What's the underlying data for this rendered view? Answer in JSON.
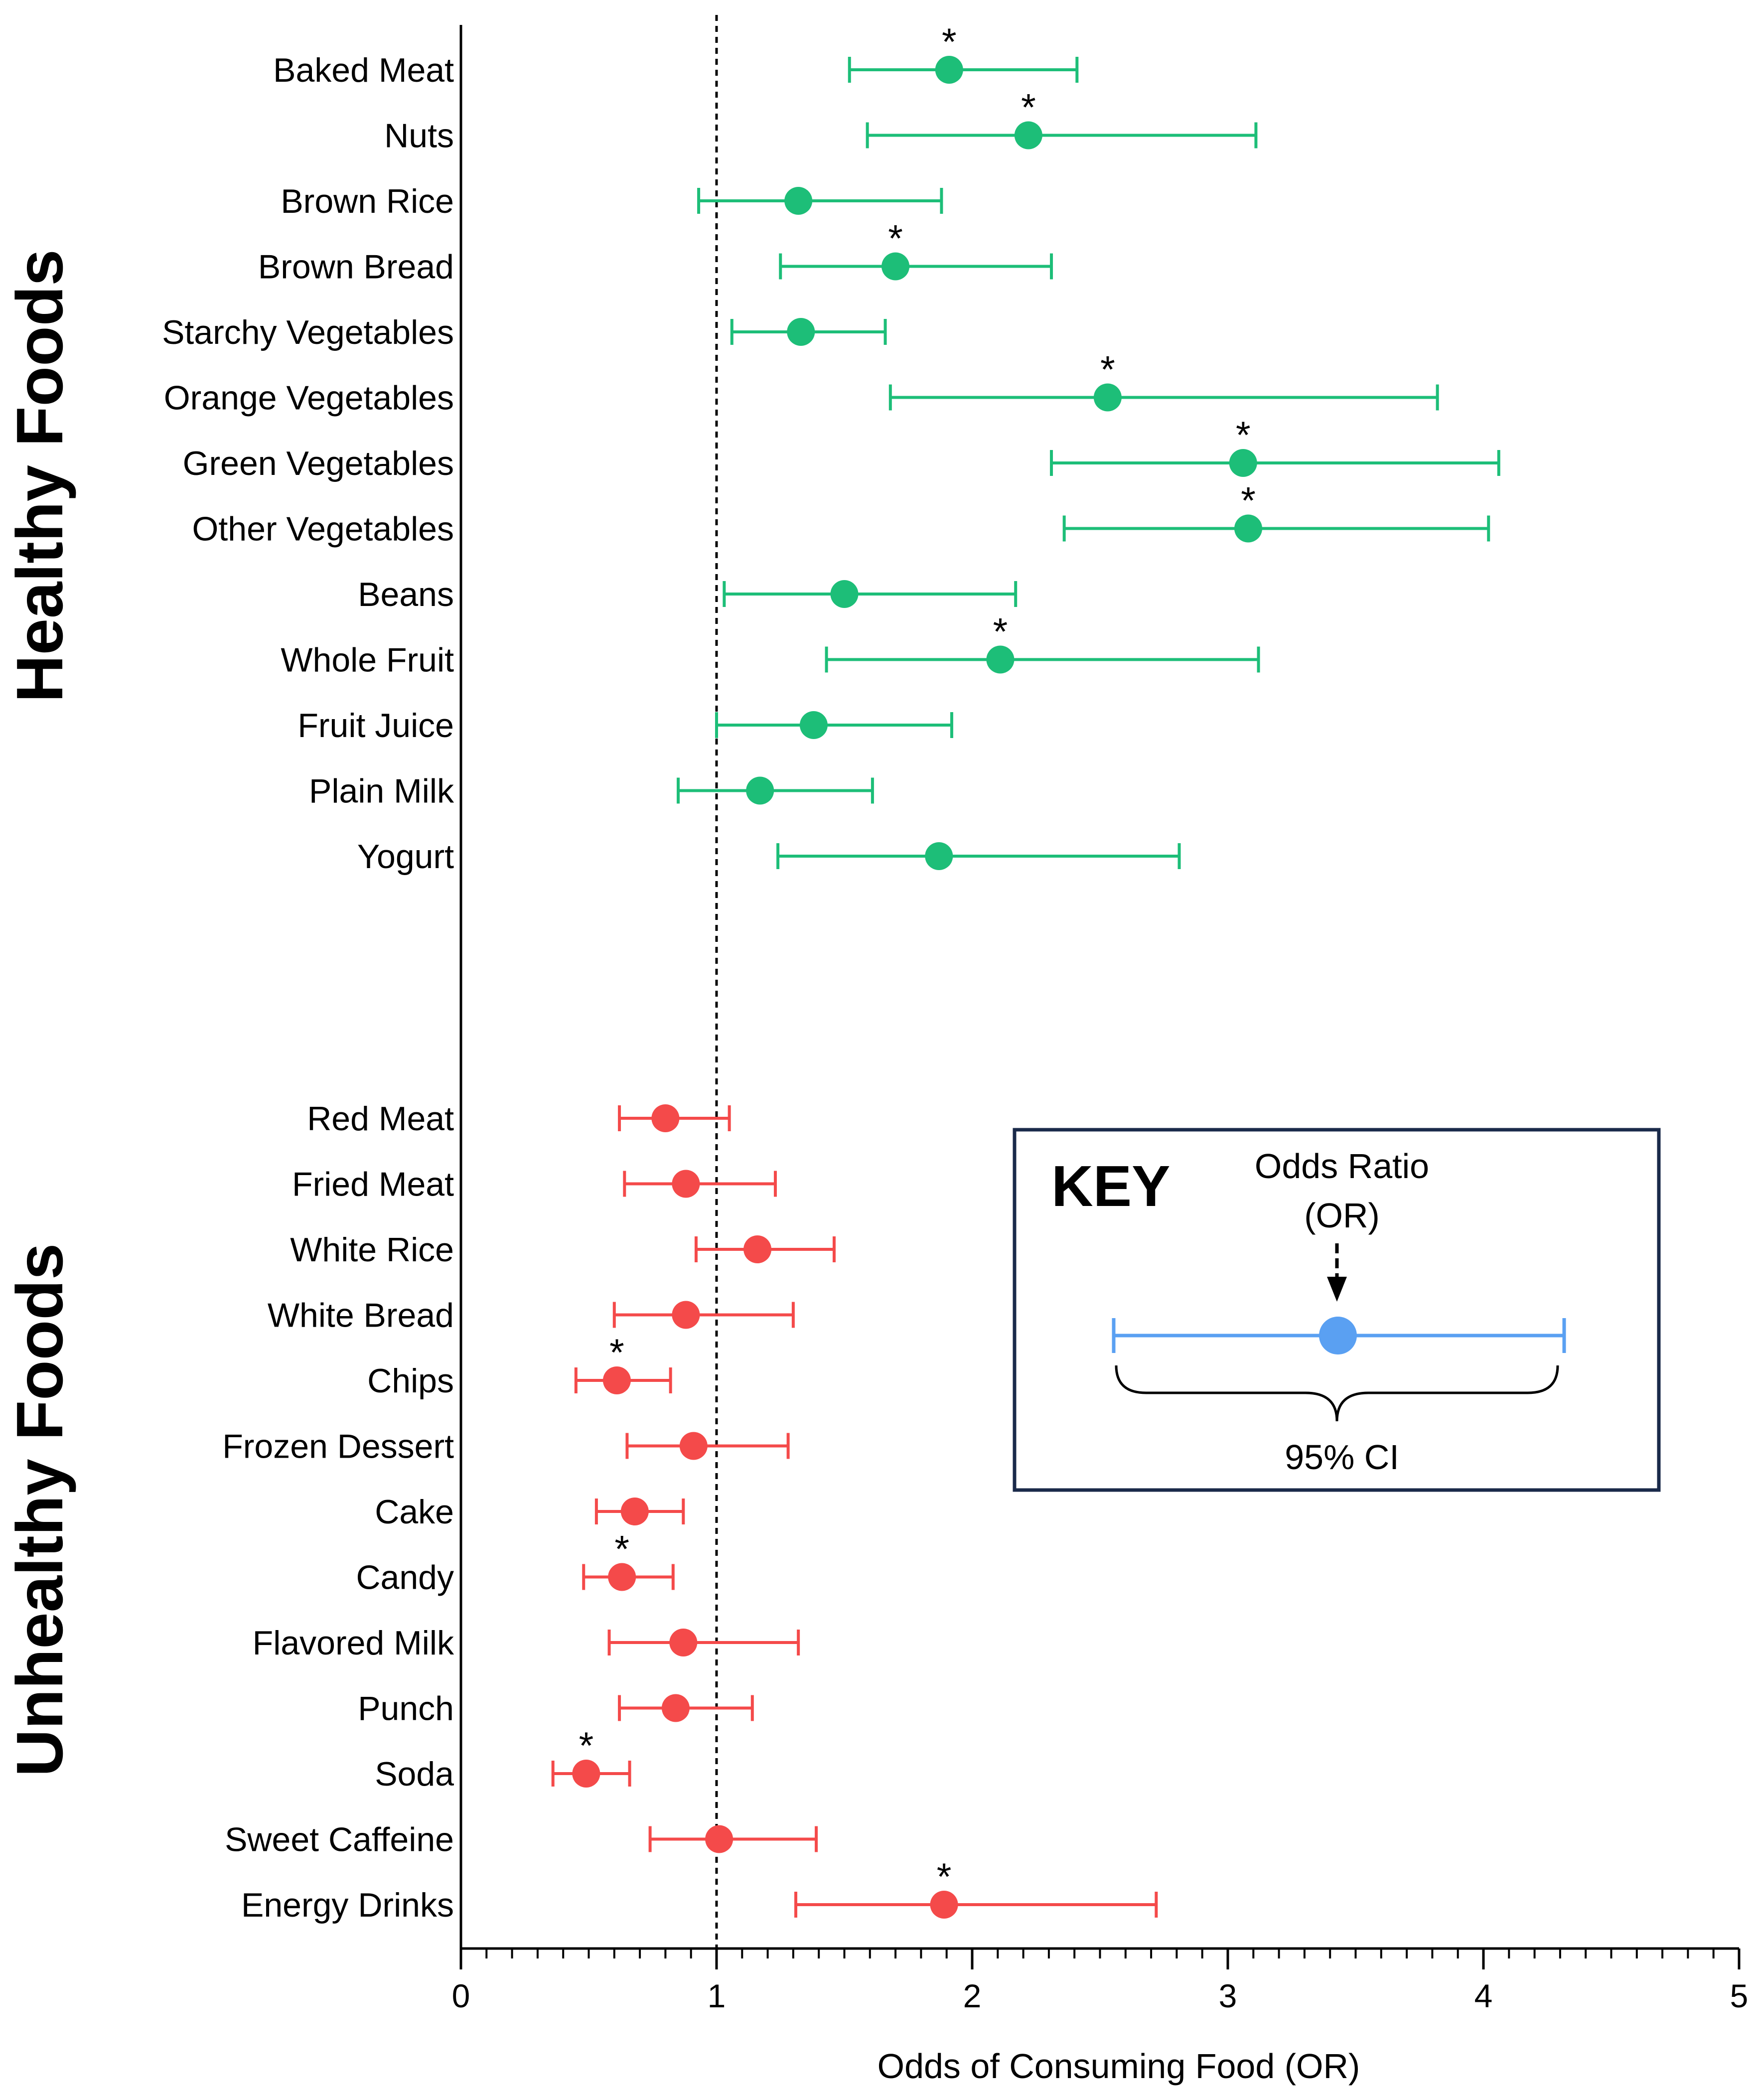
{
  "chart_data": {
    "type": "forest",
    "xlabel": "Odds of Consuming Food (OR)",
    "xlim": [
      0,
      5
    ],
    "x_ticks": [
      "0",
      "1",
      "2",
      "3",
      "4",
      "5"
    ],
    "reference_line": 1,
    "groups": [
      {
        "name": "Healthy Foods",
        "color": "#1dbe78",
        "items": [
          {
            "label": "Baked Meat",
            "or": 1.91,
            "lo": 1.52,
            "hi": 2.41,
            "sig": "*"
          },
          {
            "label": "Nuts",
            "or": 2.22,
            "lo": 1.59,
            "hi": 3.11,
            "sig": "*"
          },
          {
            "label": "Brown Rice",
            "or": 1.32,
            "lo": 0.93,
            "hi": 1.88,
            "sig": ""
          },
          {
            "label": "Brown Bread",
            "or": 1.7,
            "lo": 1.25,
            "hi": 2.31,
            "sig": "*"
          },
          {
            "label": "Starchy Vegetables",
            "or": 1.33,
            "lo": 1.06,
            "hi": 1.66,
            "sig": ""
          },
          {
            "label": "Orange Vegetables",
            "or": 2.53,
            "lo": 1.68,
            "hi": 3.82,
            "sig": "*"
          },
          {
            "label": "Green Vegetables",
            "or": 3.06,
            "lo": 2.31,
            "hi": 4.06,
            "sig": "*"
          },
          {
            "label": "Other Vegetables",
            "or": 3.08,
            "lo": 2.36,
            "hi": 4.02,
            "sig": "*"
          },
          {
            "label": "Beans",
            "or": 1.5,
            "lo": 1.03,
            "hi": 2.17,
            "sig": ""
          },
          {
            "label": "Whole Fruit",
            "or": 2.11,
            "lo": 1.43,
            "hi": 3.12,
            "sig": "*"
          },
          {
            "label": "Fruit Juice",
            "or": 1.38,
            "lo": 1.0,
            "hi": 1.92,
            "sig": ""
          },
          {
            "label": "Plain Milk",
            "or": 1.17,
            "lo": 0.85,
            "hi": 1.61,
            "sig": ""
          },
          {
            "label": "Yogurt",
            "or": 1.87,
            "lo": 1.24,
            "hi": 2.81,
            "sig": ""
          }
        ]
      },
      {
        "name": "Unhealthy Foods",
        "color": "#f44a4a",
        "items": [
          {
            "label": "Red Meat",
            "or": 0.8,
            "lo": 0.62,
            "hi": 1.05,
            "sig": ""
          },
          {
            "label": "Fried Meat",
            "or": 0.88,
            "lo": 0.64,
            "hi": 1.23,
            "sig": ""
          },
          {
            "label": "White Rice",
            "or": 1.16,
            "lo": 0.92,
            "hi": 1.46,
            "sig": ""
          },
          {
            "label": "White Bread",
            "or": 0.88,
            "lo": 0.6,
            "hi": 1.3,
            "sig": ""
          },
          {
            "label": "Chips",
            "or": 0.61,
            "lo": 0.45,
            "hi": 0.82,
            "sig": "*"
          },
          {
            "label": "Frozen Dessert",
            "or": 0.91,
            "lo": 0.65,
            "hi": 1.28,
            "sig": ""
          },
          {
            "label": "Cake",
            "or": 0.68,
            "lo": 0.53,
            "hi": 0.87,
            "sig": ""
          },
          {
            "label": "Candy",
            "or": 0.63,
            "lo": 0.48,
            "hi": 0.83,
            "sig": "*"
          },
          {
            "label": "Flavored Milk",
            "or": 0.87,
            "lo": 0.58,
            "hi": 1.32,
            "sig": ""
          },
          {
            "label": "Punch",
            "or": 0.84,
            "lo": 0.62,
            "hi": 1.14,
            "sig": ""
          },
          {
            "label": "Soda",
            "or": 0.49,
            "lo": 0.36,
            "hi": 0.66,
            "sig": "*"
          },
          {
            "label": "Sweet Caffeine",
            "or": 1.01,
            "lo": 0.74,
            "hi": 1.39,
            "sig": ""
          },
          {
            "label": "Energy Drinks",
            "or": 1.89,
            "lo": 1.31,
            "hi": 2.72,
            "sig": "*"
          }
        ]
      }
    ],
    "key": {
      "title": "KEY",
      "point_label_line1": "Odds Ratio",
      "point_label_line2": "(OR)",
      "interval_label": "95% CI",
      "color": "#5aa0f2"
    }
  }
}
